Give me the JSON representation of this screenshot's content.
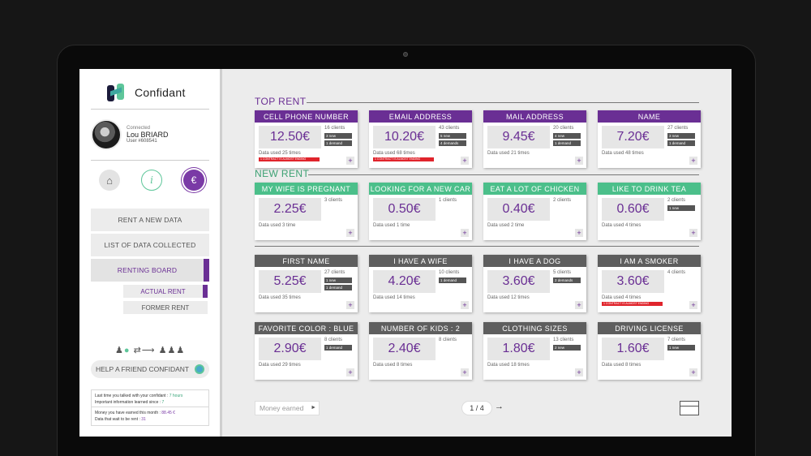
{
  "app": {
    "name": "Confidant"
  },
  "user": {
    "status": "Connected",
    "name": "Lou BRIARD",
    "id": "User #608541"
  },
  "nav_icons": [
    "home-icon",
    "info-icon",
    "euro-icon"
  ],
  "menu": {
    "rent_new": "RENT A NEW DATA",
    "collected": "LIST OF DATA COLLECTED",
    "renting": "RENTING BOARD",
    "actual": "ACTUAL RENT",
    "former": "FORMER RENT"
  },
  "help_label": "HELP A FRIEND CONFIDANT",
  "info": {
    "line1": "Last time you talked with your confidant :",
    "line1_val": "7 hours",
    "line2": "Important information learned since :",
    "line2_val": "7",
    "line3": "Money you have earned this month :",
    "line3_val": "88.45 €",
    "line4": "Data that wait to be rent :",
    "line4_val": "31"
  },
  "sections": {
    "top": "TOP RENT",
    "new": "NEW RENT"
  },
  "colors": {
    "purple": "#6a2f94",
    "green": "#4bbf8a",
    "gray": "#5e5e5e",
    "warn": "#e0242c"
  },
  "warn_text": "1 CONTRACT IS ALMOST ENDING",
  "cards": [
    {
      "title": "CELL PHONE NUMBER",
      "price": "12.50€",
      "clients": "16 clients",
      "tags": [
        "3 new",
        "1 demand"
      ],
      "used": "Data used 25 times",
      "warn": true
    },
    {
      "title": "EMAIL ADDRESS",
      "price": "10.20€",
      "clients": "43 clients",
      "tags": [
        "5 new",
        "4 demands"
      ],
      "used": "Data used 68 times",
      "warn": true
    },
    {
      "title": "MAIL ADDRESS",
      "price": "9.45€",
      "clients": "20 clients",
      "tags": [
        "4 new",
        "1 demand"
      ],
      "used": "Data used 21 times",
      "warn": false
    },
    {
      "title": "NAME",
      "price": "7.20€",
      "clients": "27 clients",
      "tags": [
        "3 new",
        "1 demand"
      ],
      "used": "Data used 48 times",
      "warn": false
    },
    {
      "title": "MY WIFE IS PREGNANT",
      "price": "2.25€",
      "clients": "3 clients",
      "tags": [],
      "used": "Data used 3 time",
      "warn": false
    },
    {
      "title": "LOOKING FOR A NEW CAR",
      "price": "0.50€",
      "clients": "1 clients",
      "tags": [],
      "used": "Data used 1 time",
      "warn": false
    },
    {
      "title": "EAT A LOT OF CHICKEN",
      "price": "0.40€",
      "clients": "2 clients",
      "tags": [],
      "used": "Data used 2 time",
      "warn": false
    },
    {
      "title": "LIKE TO DRINK TEA",
      "price": "0.60€",
      "clients": "2 clients",
      "tags": [
        "1 new"
      ],
      "used": "Data used 4 times",
      "warn": false
    },
    {
      "title": "FIRST NAME",
      "price": "5.25€",
      "clients": "27 clients",
      "tags": [
        "1 new",
        "1 demand"
      ],
      "used": "Data used 35 times",
      "warn": false
    },
    {
      "title": "I HAVE A WIFE",
      "price": "4.20€",
      "clients": "10 clients",
      "tags": [
        "1 demand"
      ],
      "used": "Data used 14 times",
      "warn": false
    },
    {
      "title": "I HAVE A DOG",
      "price": "3.60€",
      "clients": "5 clients",
      "tags": [
        "2 demands"
      ],
      "used": "Data used 12 times",
      "warn": false
    },
    {
      "title": "I AM A SMOKER",
      "price": "3.60€",
      "clients": "4 clients",
      "tags": [],
      "used": "Data used 4 times",
      "warn": true
    },
    {
      "title": "FAVORITE COLOR : BLUE",
      "price": "2.90€",
      "clients": "8 clients",
      "tags": [
        "1 demand"
      ],
      "used": "Data used 29 times",
      "warn": false
    },
    {
      "title": "NUMBER OF KIDS : 2",
      "price": "2.40€",
      "clients": "8 clients",
      "tags": [],
      "used": "Data used 8 times",
      "warn": false
    },
    {
      "title": "CLOTHING SIZES",
      "price": "1.80€",
      "clients": "13 clients",
      "tags": [
        "2 new"
      ],
      "used": "Data used 18 times",
      "warn": false
    },
    {
      "title": "DRIVING LICENSE",
      "price": "1.60€",
      "clients": "7 clients",
      "tags": [
        "1 new"
      ],
      "used": "Data used 8 times",
      "warn": false
    }
  ],
  "footer": {
    "money_placeholder": "Money earned",
    "page": "1 / 4"
  }
}
